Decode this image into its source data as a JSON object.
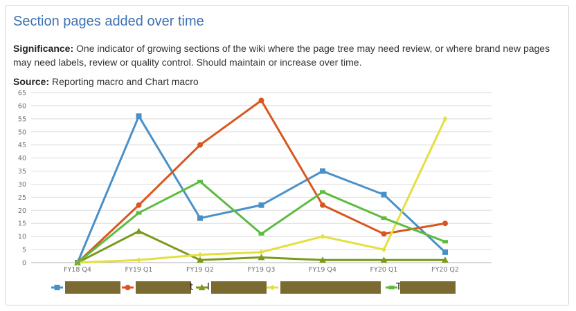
{
  "panel": {
    "title": "Section pages added over time",
    "significance_label": "Significance:",
    "significance_text": " One indicator of growing sections of the wiki where the page tree may need review, or where brand new pages may need labels, review or quality control. Should maintain or increase over time.",
    "source_label": "Source:",
    "source_text": " Reporting macro and Chart macro"
  },
  "chart_data": {
    "type": "line",
    "title": "Section pages added over time",
    "xlabel": "",
    "ylabel": "",
    "ylim": [
      0,
      65
    ],
    "yticks": [
      0,
      5,
      10,
      15,
      20,
      25,
      30,
      35,
      40,
      45,
      50,
      55,
      60,
      65
    ],
    "grid": true,
    "legend_position": "bottom",
    "categories": [
      "FY18 Q4",
      "FY19 Q1",
      "FY19 Q2",
      "FY19 Q3",
      "FY19 Q4",
      "FY20 Q1",
      "FY20 Q2"
    ],
    "series": [
      {
        "name": "[redacted]",
        "color": "#4a90c8",
        "marker": "square",
        "values": [
          0,
          56,
          17,
          22,
          35,
          26,
          4
        ]
      },
      {
        "name": "[redacted]",
        "color": "#d9571f",
        "marker": "circle",
        "values": [
          0,
          22,
          45,
          62,
          22,
          11,
          15
        ]
      },
      {
        "name": "[redacted]",
        "color": "#7a9a1a",
        "marker": "triangle",
        "values": [
          0,
          12,
          1,
          2,
          1,
          1,
          1
        ]
      },
      {
        "name": "[redacted]",
        "color": "#e3e03e",
        "marker": "diamond",
        "values": [
          0,
          1,
          3,
          4,
          10,
          5,
          55
        ]
      },
      {
        "name": "[redacted]",
        "color": "#5dbb3f",
        "marker": "dash",
        "values": [
          0,
          19,
          31,
          11,
          27,
          17,
          8
        ]
      }
    ]
  },
  "legend": {
    "peek_1": "t",
    "peek_2": "I",
    "peek_3": "s",
    "peek_4": "T"
  }
}
